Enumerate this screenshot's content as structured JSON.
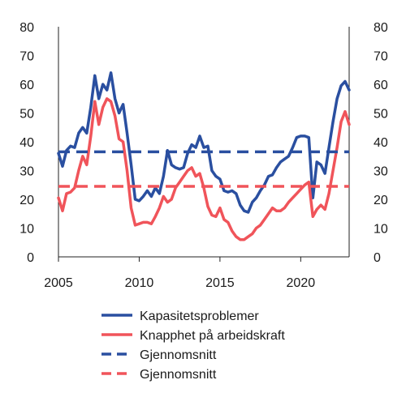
{
  "chart_data": {
    "type": "line",
    "title": "",
    "xlabel": "",
    "ylabel": "",
    "xlim": [
      2005,
      2023
    ],
    "ylim": [
      0,
      80
    ],
    "yticks": [
      0,
      10,
      20,
      30,
      40,
      50,
      60,
      70,
      80
    ],
    "xticks": [
      2005,
      2010,
      2015,
      2020
    ],
    "grid": false,
    "legend_position": "bottom",
    "series": [
      {
        "name": "Kapasitetsproblemer",
        "color": "#2a4fa0",
        "dash": "solid",
        "points": [
          [
            2005.0,
            36
          ],
          [
            2005.25,
            31.5
          ],
          [
            2005.5,
            37
          ],
          [
            2005.75,
            38.5
          ],
          [
            2006.0,
            38
          ],
          [
            2006.25,
            43
          ],
          [
            2006.5,
            45
          ],
          [
            2006.75,
            43
          ],
          [
            2007.0,
            52
          ],
          [
            2007.25,
            63
          ],
          [
            2007.5,
            55
          ],
          [
            2007.75,
            60
          ],
          [
            2008.0,
            58
          ],
          [
            2008.25,
            64
          ],
          [
            2008.5,
            55
          ],
          [
            2008.75,
            50
          ],
          [
            2009.0,
            53
          ],
          [
            2009.25,
            43
          ],
          [
            2009.5,
            32
          ],
          [
            2009.75,
            20
          ],
          [
            2010.0,
            19.5
          ],
          [
            2010.25,
            21
          ],
          [
            2010.5,
            23
          ],
          [
            2010.75,
            21
          ],
          [
            2011.0,
            24
          ],
          [
            2011.25,
            22
          ],
          [
            2011.5,
            28
          ],
          [
            2011.75,
            37
          ],
          [
            2012.0,
            32
          ],
          [
            2012.25,
            31
          ],
          [
            2012.5,
            30.5
          ],
          [
            2012.75,
            31
          ],
          [
            2013.0,
            36
          ],
          [
            2013.25,
            39
          ],
          [
            2013.5,
            38
          ],
          [
            2013.75,
            42
          ],
          [
            2014.0,
            38
          ],
          [
            2014.25,
            38.5
          ],
          [
            2014.5,
            30
          ],
          [
            2014.75,
            28
          ],
          [
            2015.0,
            27
          ],
          [
            2015.25,
            23
          ],
          [
            2015.5,
            22.5
          ],
          [
            2015.75,
            23
          ],
          [
            2016.0,
            22
          ],
          [
            2016.25,
            18
          ],
          [
            2016.5,
            16
          ],
          [
            2016.75,
            15.5
          ],
          [
            2017.0,
            19
          ],
          [
            2017.25,
            20.5
          ],
          [
            2017.5,
            23
          ],
          [
            2017.75,
            25
          ],
          [
            2018.0,
            28
          ],
          [
            2018.25,
            28.5
          ],
          [
            2018.5,
            31
          ],
          [
            2018.75,
            33
          ],
          [
            2019.0,
            34
          ],
          [
            2019.25,
            35
          ],
          [
            2019.5,
            38
          ],
          [
            2019.75,
            41.5
          ],
          [
            2020.0,
            42
          ],
          [
            2020.25,
            42
          ],
          [
            2020.5,
            41.5
          ],
          [
            2020.75,
            20.5
          ],
          [
            2021.0,
            33
          ],
          [
            2021.25,
            32
          ],
          [
            2021.5,
            29
          ],
          [
            2021.75,
            38
          ],
          [
            2022.0,
            47
          ],
          [
            2022.25,
            55
          ],
          [
            2022.5,
            59.5
          ],
          [
            2022.75,
            61
          ],
          [
            2023.0,
            58
          ]
        ]
      },
      {
        "name": "Knapphet på arbeidskraft",
        "color": "#f0545a",
        "dash": "solid",
        "points": [
          [
            2005.0,
            20.5
          ],
          [
            2005.25,
            16
          ],
          [
            2005.5,
            22
          ],
          [
            2005.75,
            22.5
          ],
          [
            2006.0,
            24
          ],
          [
            2006.25,
            30
          ],
          [
            2006.5,
            35
          ],
          [
            2006.75,
            32
          ],
          [
            2007.0,
            42
          ],
          [
            2007.25,
            54
          ],
          [
            2007.5,
            46
          ],
          [
            2007.75,
            52
          ],
          [
            2008.0,
            55
          ],
          [
            2008.25,
            54
          ],
          [
            2008.5,
            49
          ],
          [
            2008.75,
            41
          ],
          [
            2009.0,
            40
          ],
          [
            2009.25,
            30
          ],
          [
            2009.5,
            17
          ],
          [
            2009.75,
            11
          ],
          [
            2010.0,
            11.5
          ],
          [
            2010.25,
            12
          ],
          [
            2010.5,
            12
          ],
          [
            2010.75,
            11.5
          ],
          [
            2011.0,
            14
          ],
          [
            2011.25,
            17
          ],
          [
            2011.5,
            21
          ],
          [
            2011.75,
            19
          ],
          [
            2012.0,
            20
          ],
          [
            2012.25,
            24
          ],
          [
            2012.5,
            26
          ],
          [
            2012.75,
            28
          ],
          [
            2013.0,
            30
          ],
          [
            2013.25,
            31
          ],
          [
            2013.5,
            28
          ],
          [
            2013.75,
            29
          ],
          [
            2014.0,
            24
          ],
          [
            2014.25,
            17.5
          ],
          [
            2014.5,
            14.5
          ],
          [
            2014.75,
            14
          ],
          [
            2015.0,
            17
          ],
          [
            2015.25,
            13
          ],
          [
            2015.5,
            12
          ],
          [
            2015.75,
            9
          ],
          [
            2016.0,
            7
          ],
          [
            2016.25,
            6
          ],
          [
            2016.5,
            6
          ],
          [
            2016.75,
            7
          ],
          [
            2017.0,
            8
          ],
          [
            2017.25,
            10
          ],
          [
            2017.5,
            11
          ],
          [
            2017.75,
            13
          ],
          [
            2018.0,
            15
          ],
          [
            2018.25,
            17
          ],
          [
            2018.5,
            16
          ],
          [
            2018.75,
            16
          ],
          [
            2019.0,
            17
          ],
          [
            2019.25,
            19
          ],
          [
            2019.5,
            20.5
          ],
          [
            2019.75,
            22
          ],
          [
            2020.0,
            23.5
          ],
          [
            2020.25,
            25
          ],
          [
            2020.5,
            26
          ],
          [
            2020.75,
            14
          ],
          [
            2021.0,
            16.5
          ],
          [
            2021.25,
            18
          ],
          [
            2021.5,
            16.5
          ],
          [
            2021.75,
            22
          ],
          [
            2022.0,
            30
          ],
          [
            2022.25,
            38
          ],
          [
            2022.5,
            47
          ],
          [
            2022.75,
            50.5
          ],
          [
            2023.0,
            46
          ]
        ]
      },
      {
        "name": "Gjennomsnitt",
        "color": "#2a4fa0",
        "dash": "dashed",
        "points": [
          [
            2005.0,
            36.5
          ],
          [
            2023.0,
            36.5
          ]
        ]
      },
      {
        "name": "Gjennomsnitt",
        "color": "#f0545a",
        "dash": "dashed",
        "points": [
          [
            2005.0,
            24.5
          ],
          [
            2023.0,
            24.5
          ]
        ]
      }
    ]
  }
}
